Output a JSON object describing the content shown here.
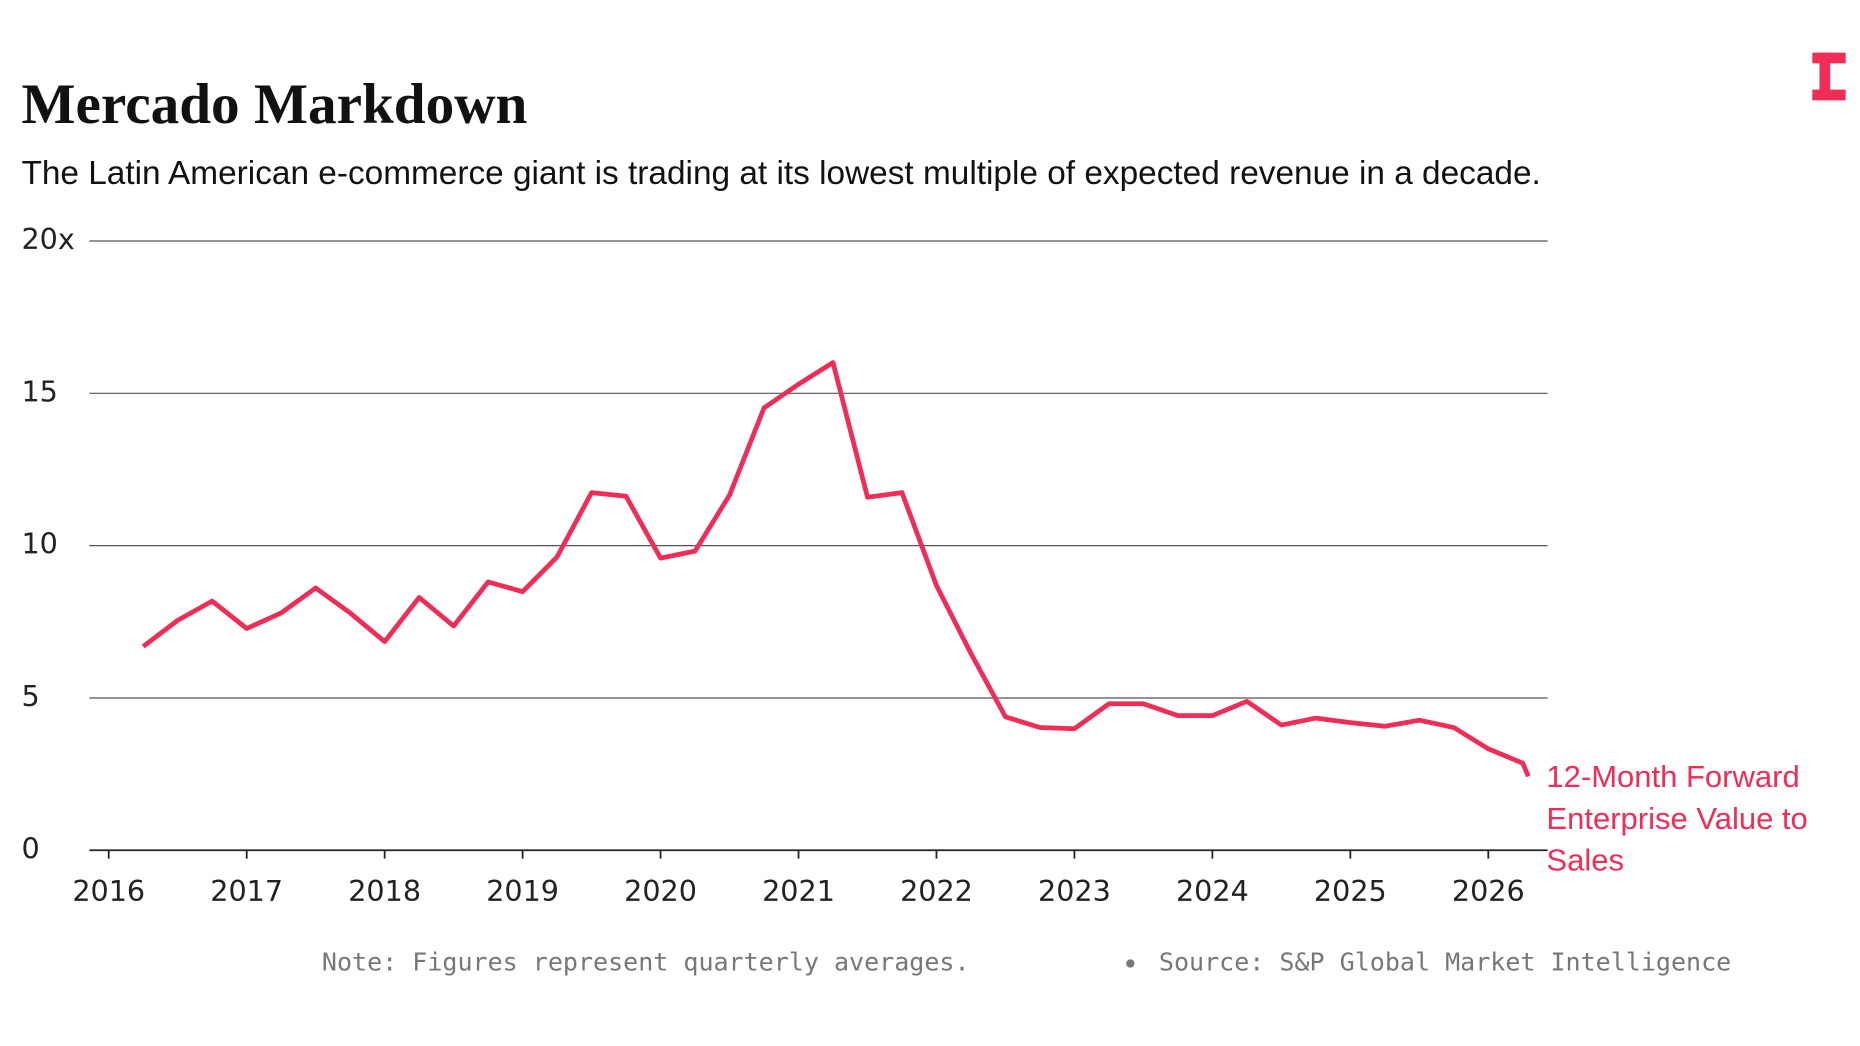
{
  "chart_data": {
    "type": "line",
    "title": "Mercado Markdown",
    "subtitle": "The Latin American e-commerce giant is trading at its lowest multiple of expected revenue in a decade.",
    "note": "Note: Figures represent quarterly averages.",
    "source": "Source: S&P Global Market Intelligence",
    "x": [
      2016.25,
      2016.5,
      2016.75,
      2017.0,
      2017.25,
      2017.5,
      2017.75,
      2018.0,
      2018.25,
      2018.5,
      2018.75,
      2019.0,
      2019.25,
      2019.5,
      2019.75,
      2020.0,
      2020.25,
      2020.5,
      2020.75,
      2021.0,
      2021.25,
      2021.5,
      2021.75,
      2022.0,
      2022.25,
      2022.5,
      2022.75,
      2023.0,
      2023.25,
      2023.5,
      2023.75,
      2024.0,
      2024.25,
      2024.5,
      2024.75,
      2025.0,
      2025.25,
      2025.5,
      2025.75,
      2026.0,
      2026.25,
      2026.29
    ],
    "series": [
      {
        "name": "12-Month Forward Enterprise Value to Sales",
        "color": "#ef2d56",
        "values": [
          6.69,
          7.55,
          8.18,
          7.28,
          7.79,
          8.61,
          7.79,
          6.85,
          8.3,
          7.36,
          8.81,
          8.49,
          9.63,
          11.74,
          11.62,
          9.59,
          9.82,
          11.66,
          14.52,
          15.3,
          16.01,
          11.59,
          11.74,
          8.69,
          6.46,
          4.38,
          4.03,
          3.99,
          4.81,
          4.81,
          4.42,
          4.42,
          4.89,
          4.11,
          4.34,
          4.19,
          4.07,
          4.27,
          4.03,
          3.33,
          2.86,
          2.43
        ]
      }
    ],
    "xlim": [
      2015.86,
      2026.43
    ],
    "xticks": [
      2016,
      2017,
      2018,
      2019,
      2020,
      2021,
      2022,
      2023,
      2024,
      2025,
      2026
    ],
    "ylim": [
      0,
      20
    ],
    "yticks": [
      0,
      5,
      10,
      15,
      {
        "value": 20,
        "label": "20x"
      }
    ],
    "grid": true
  }
}
